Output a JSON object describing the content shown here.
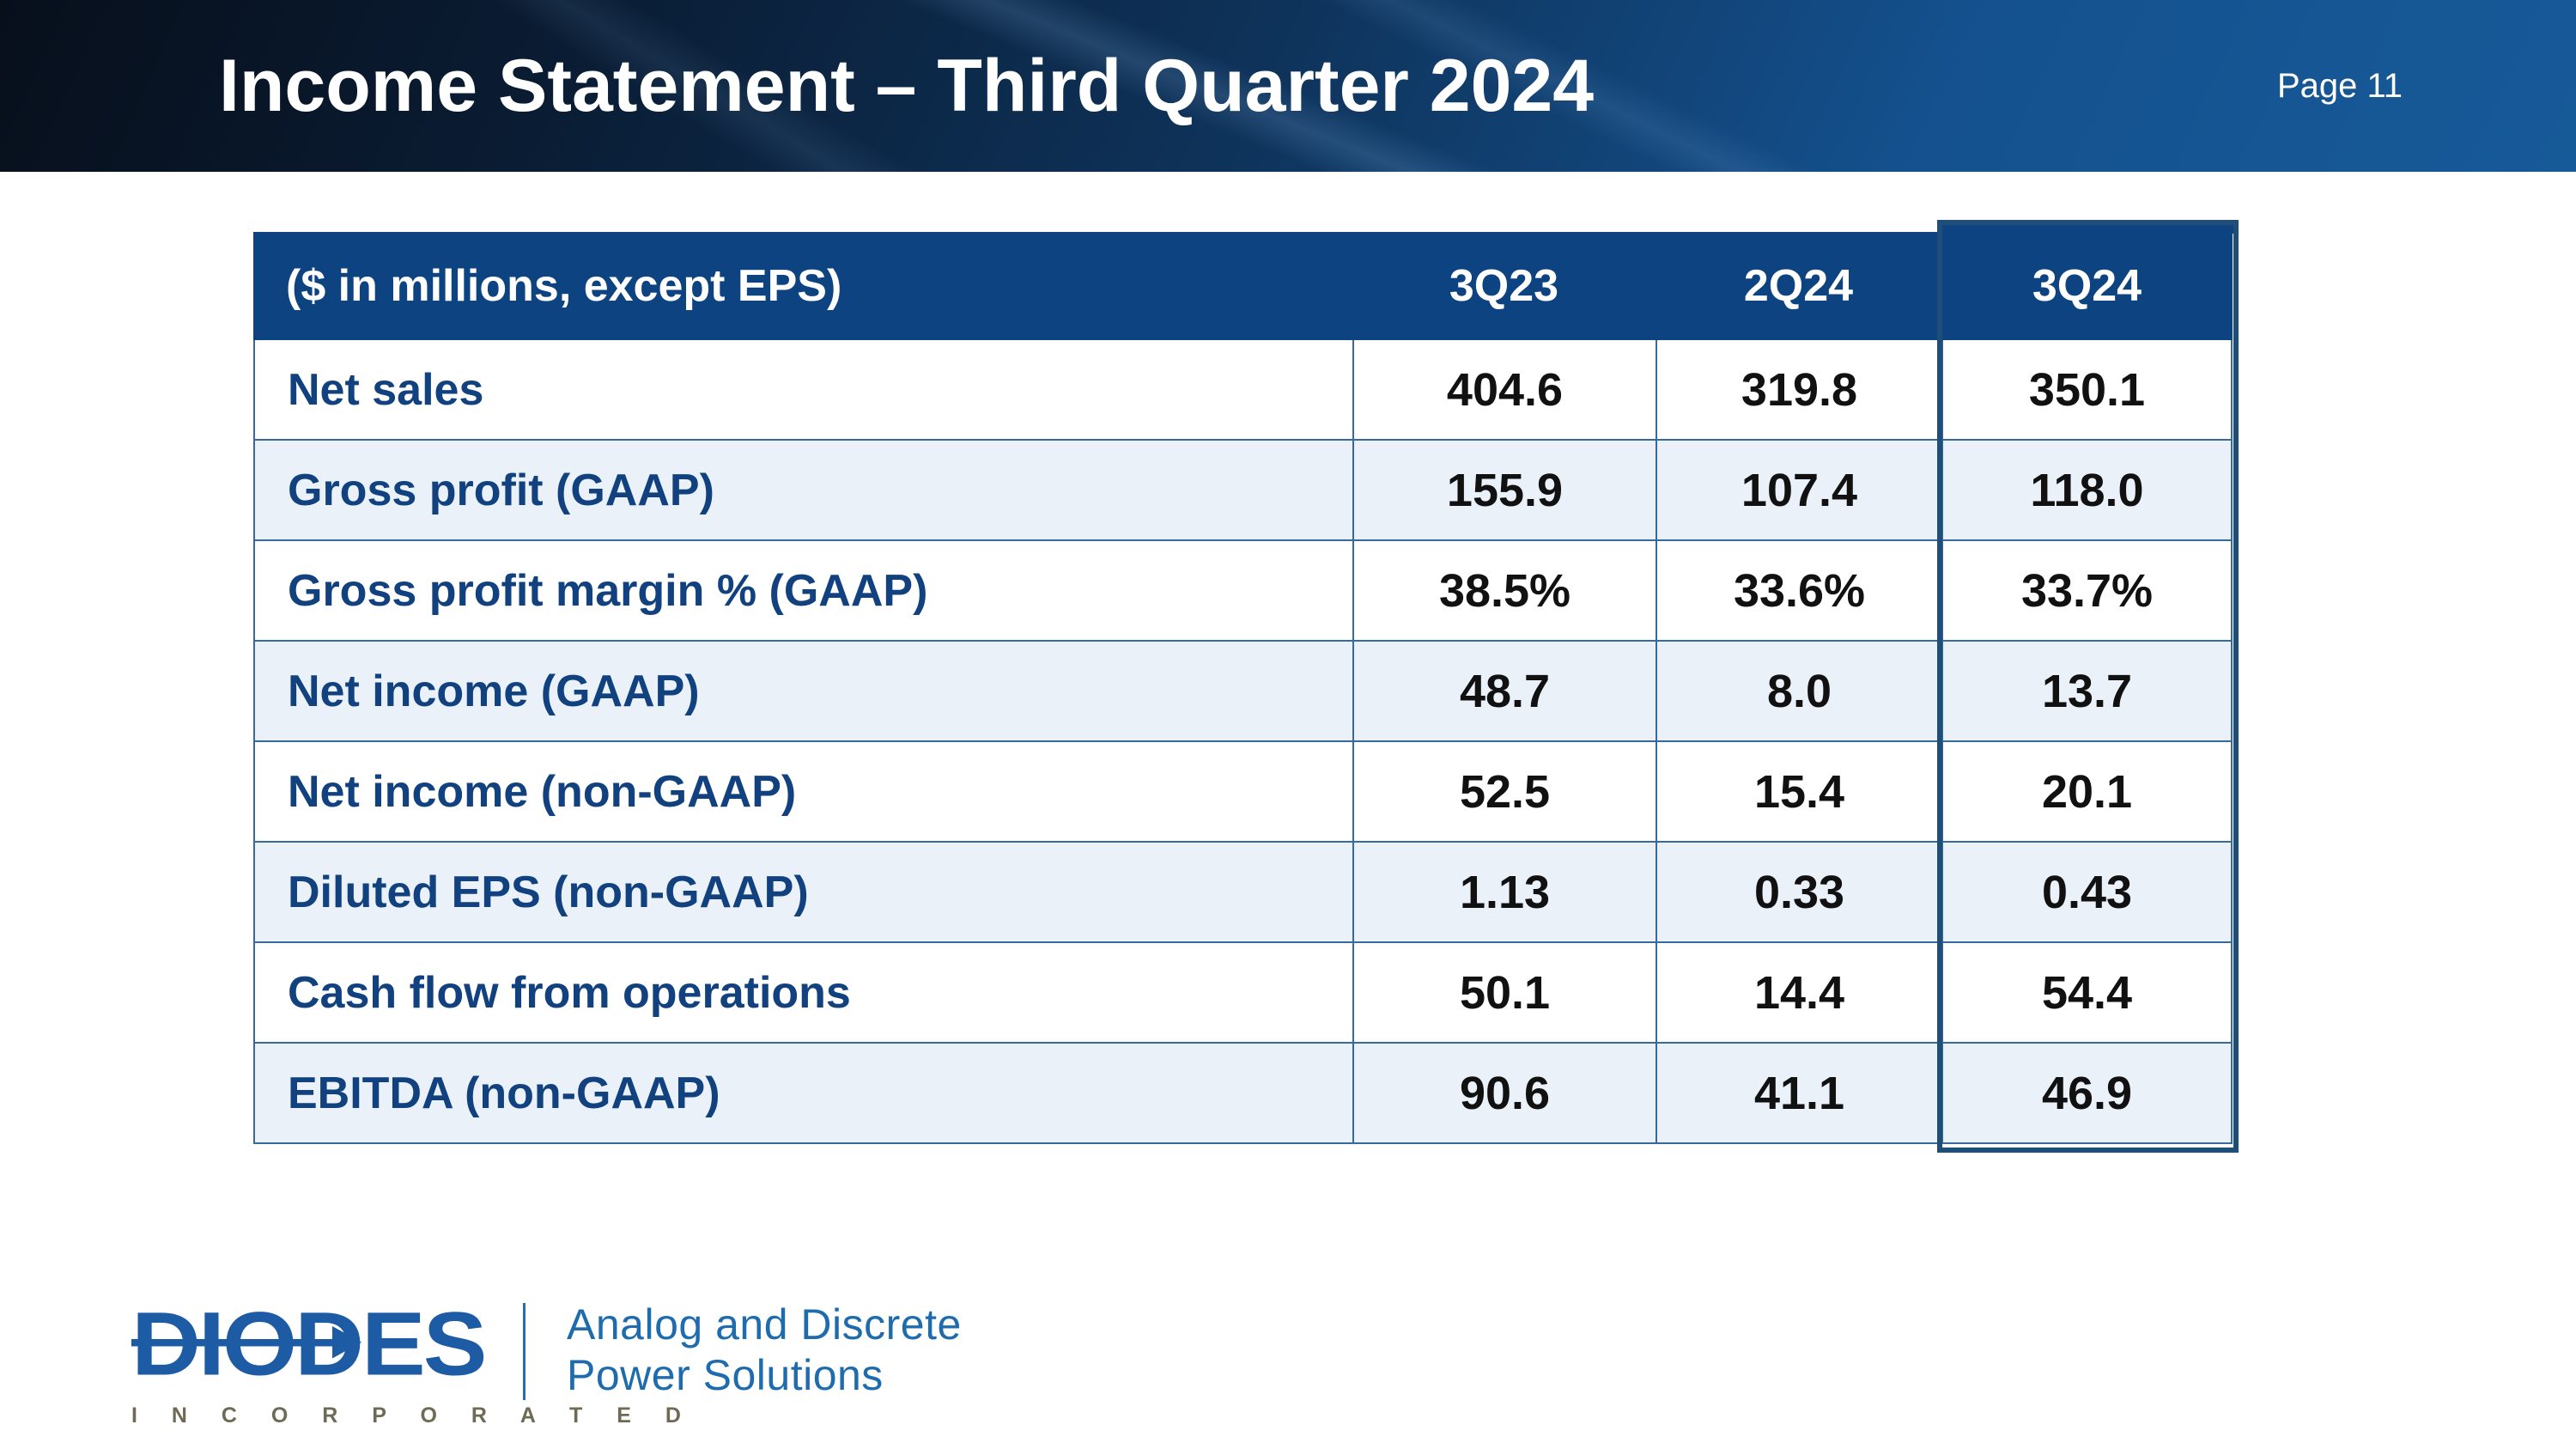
{
  "header": {
    "title": "Income Statement – Third Quarter 2024",
    "page_label": "Page 11"
  },
  "table": {
    "caption": "($ in millions, except EPS)",
    "columns": [
      "3Q23",
      "2Q24",
      "3Q24"
    ],
    "highlight_column": "3Q24",
    "rows": [
      {
        "label": "Net sales",
        "values": [
          "404.6",
          "319.8",
          "350.1"
        ]
      },
      {
        "label": "Gross profit (GAAP)",
        "values": [
          "155.9",
          "107.4",
          "118.0"
        ]
      },
      {
        "label": "Gross profit margin % (GAAP)",
        "values": [
          "38.5%",
          "33.6%",
          "33.7%"
        ]
      },
      {
        "label": "Net income (GAAP)",
        "values": [
          "48.7",
          "8.0",
          "13.7"
        ]
      },
      {
        "label": "Net income (non-GAAP)",
        "values": [
          "52.5",
          "15.4",
          "20.1"
        ]
      },
      {
        "label": "Diluted EPS (non-GAAP)",
        "values": [
          "1.13",
          "0.33",
          "0.43"
        ]
      },
      {
        "label": "Cash flow from operations",
        "values": [
          "50.1",
          "14.4",
          "54.4"
        ]
      },
      {
        "label": "EBITDA (non-GAAP)",
        "values": [
          "90.6",
          "41.1",
          "46.9"
        ]
      }
    ]
  },
  "footer": {
    "logo_text": "DIODES",
    "logo_subtext": "I N C O R P O R A T E D",
    "tagline_line1": "Analog and Discrete",
    "tagline_line2": "Power Solutions"
  },
  "colors": {
    "banner_blue": "#175a99",
    "table_header_blue": "#0d4381",
    "highlight_border": "#1f4e79",
    "grid_line": "#37699e",
    "row_alt": "#eaf1f9",
    "label_navy": "#11417e",
    "logo_blue": "#1d5ca5",
    "incorporated_gray": "#6e6a55",
    "tagline_blue": "#1e6cae"
  }
}
